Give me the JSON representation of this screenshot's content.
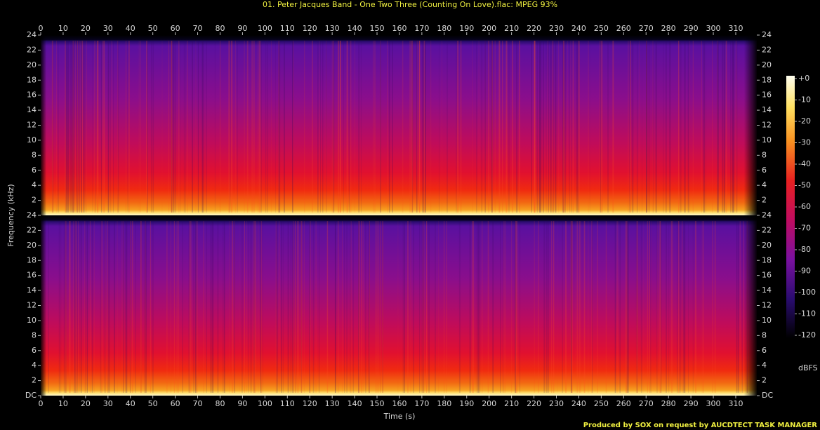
{
  "chart_data": {
    "type": "spectrogram",
    "title": "01. Peter Jacques Band - One Two Three (Counting On Love).flac: MPEG 93%",
    "x_label": "Time (s)",
    "y_label": "Frequency (kHz)",
    "xlim": [
      0,
      319.4
    ],
    "xticks": [
      0,
      10,
      20,
      30,
      40,
      50,
      60,
      70,
      80,
      90,
      100,
      110,
      120,
      130,
      140,
      150,
      160,
      170,
      180,
      190,
      200,
      210,
      220,
      230,
      240,
      250,
      260,
      270,
      280,
      290,
      300,
      310
    ],
    "channels": [
      {
        "ylim": [
          0,
          24
        ],
        "yticks": [
          2,
          4,
          6,
          8,
          10,
          12,
          14,
          16,
          18,
          20,
          22,
          24
        ]
      },
      {
        "ylim": [
          0,
          24
        ],
        "yticks": [
          {
            "value": 0,
            "label": "DC"
          },
          2,
          4,
          6,
          8,
          10,
          12,
          14,
          16,
          18,
          20,
          22,
          24
        ]
      }
    ],
    "colorbar": {
      "label": "dBFS",
      "lim": [
        -120,
        0
      ],
      "ticks": [
        {
          "value": 0,
          "label": "+0"
        },
        -10,
        -20,
        -30,
        -40,
        -50,
        -60,
        -70,
        -80,
        -90,
        -100,
        -110,
        -120
      ]
    }
  },
  "footer": "Produced by SOX on request by AUCDTECT TASK MANAGER"
}
